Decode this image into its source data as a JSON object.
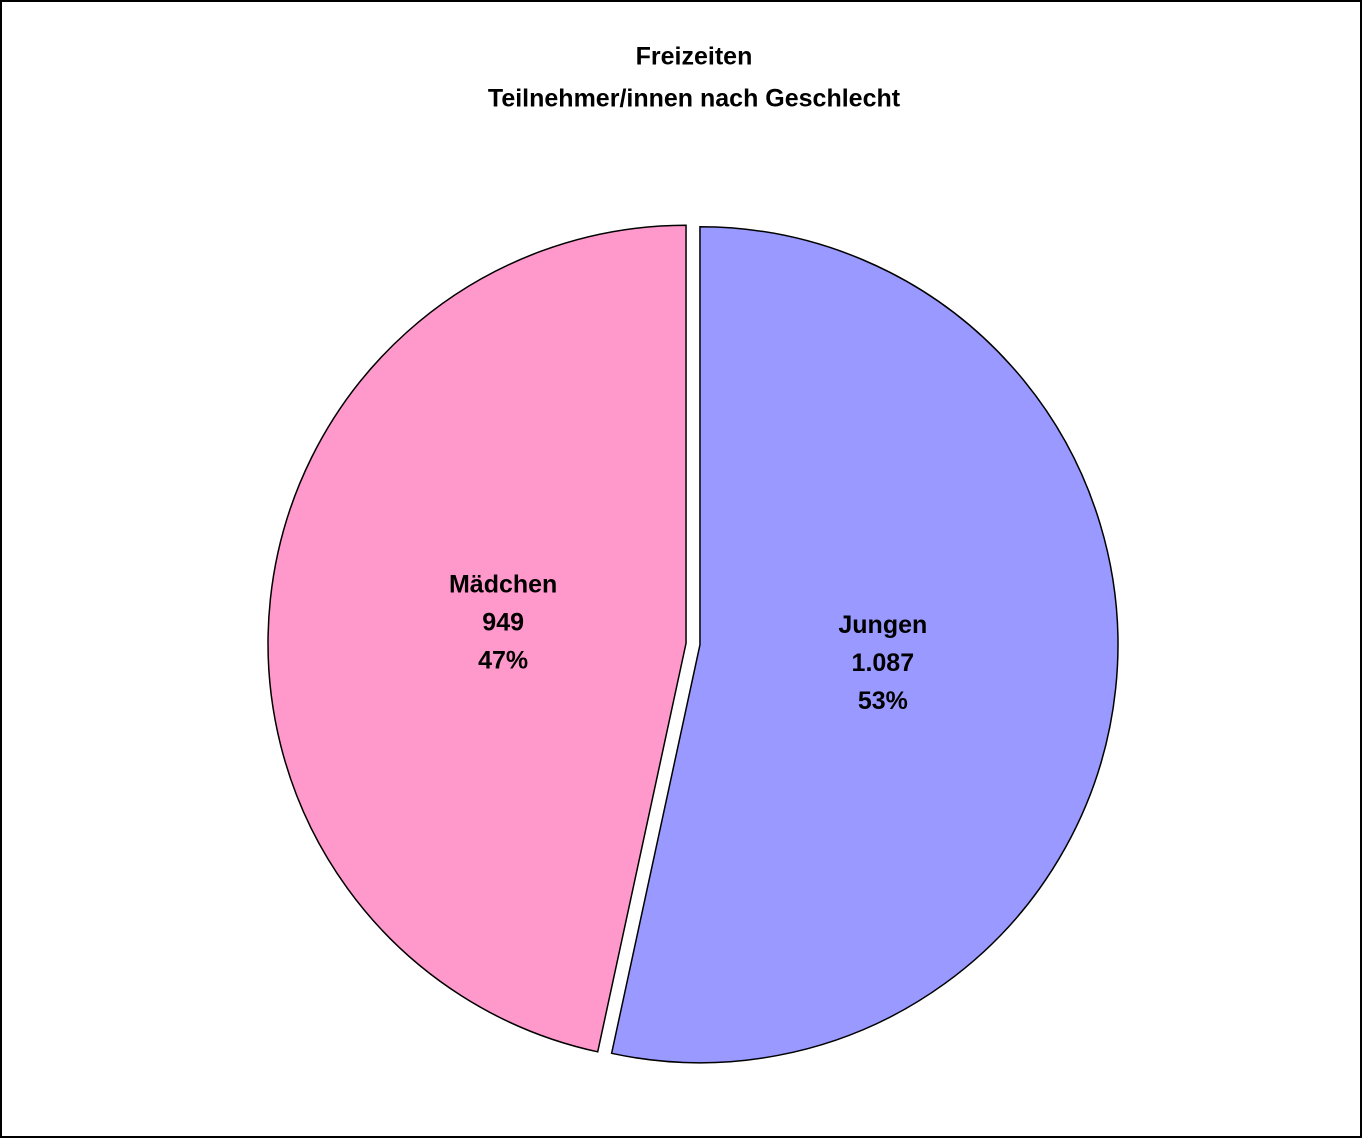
{
  "chart_data": {
    "type": "pie",
    "title": [
      "Freizeiten",
      "Teilnehmer/innen nach Geschlecht"
    ],
    "categories": [
      "Jungen",
      "Mädchen"
    ],
    "values": [
      1087,
      949
    ],
    "value_labels": [
      "1.087",
      "949"
    ],
    "percent_labels": [
      "53%",
      "47%"
    ],
    "colors": [
      "#9999ff",
      "#ff99cc"
    ],
    "start_angle": 0,
    "direction": "clockwise"
  }
}
